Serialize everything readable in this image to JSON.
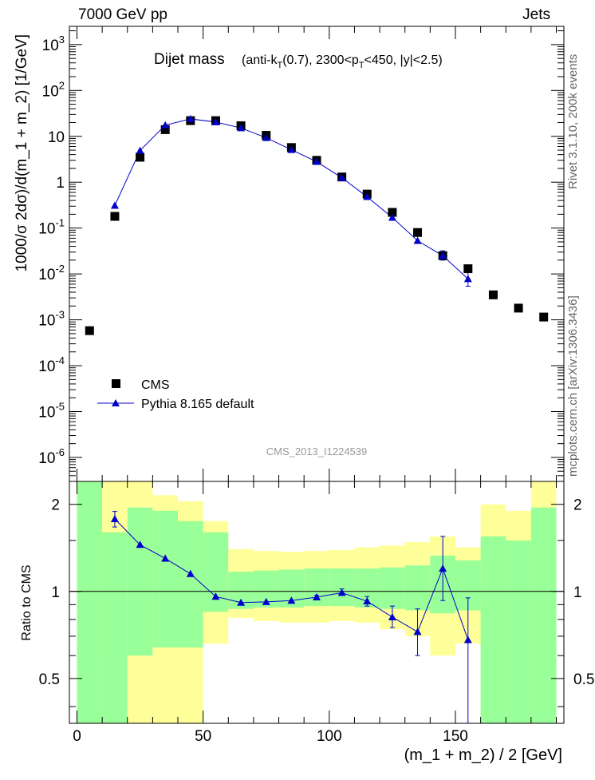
{
  "header": {
    "left": "7000 GeV pp",
    "right": "Jets"
  },
  "side": {
    "rivet": "Rivet 3.1.10,  200k events",
    "mcplots": "mcplots.cern.ch [arXiv:1306.3436]"
  },
  "chart_data": [
    {
      "type": "scatter",
      "log_y": true,
      "title": "Dijet mass",
      "subtitle": "(anti-kT(0.7), 2300<pT<450, |y|<2.5)",
      "watermark": "CMS_2013_I1224539",
      "ylabel": "1000/σ 2dσ)/d(m_1 + m_2) [1/GeV]",
      "xlim": [
        -3,
        193
      ],
      "ylim": [
        3e-07,
        2500
      ],
      "y_tick_labels": [
        "10^-6",
        "10^-5",
        "10^-4",
        "10^-3",
        "10^-2",
        "10^-1",
        "1",
        "10",
        "10^2",
        "10^3"
      ],
      "legend": [
        "CMS",
        "Pythia 8.165 default"
      ],
      "series": [
        {
          "name": "CMS",
          "color": "#000000",
          "marker": "square",
          "x": [
            5,
            15,
            25,
            35,
            45,
            55,
            65,
            75,
            85,
            95,
            105,
            115,
            125,
            135,
            145,
            155,
            165,
            175,
            185
          ],
          "values": [
            0.00058,
            0.18,
            3.5,
            14,
            22,
            22,
            17,
            10.5,
            5.7,
            3.0,
            1.3,
            0.55,
            0.22,
            0.08,
            0.025,
            0.013,
            0.0035,
            0.0018,
            0.00115
          ]
        },
        {
          "name": "Pythia 8.165 default",
          "color": "#0000cc",
          "marker": "triangle",
          "x": [
            15,
            25,
            35,
            45,
            55,
            65,
            75,
            85,
            95,
            105,
            115,
            125,
            135,
            145,
            155
          ],
          "values": [
            0.31,
            4.9,
            17.5,
            24,
            20.5,
            15.2,
            9.3,
            5.1,
            2.8,
            1.25,
            0.48,
            0.17,
            0.053,
            0.025,
            0.0078
          ],
          "err_low": [
            0.31,
            4.9,
            17.5,
            24,
            20.5,
            15.2,
            9.3,
            5.1,
            2.8,
            1.25,
            0.48,
            0.17,
            0.053,
            0.02,
            0.0054
          ],
          "err_high": [
            0.31,
            4.9,
            17.5,
            24,
            20.5,
            15.2,
            9.3,
            5.1,
            2.8,
            1.25,
            0.48,
            0.17,
            0.053,
            0.032,
            0.0115
          ]
        }
      ]
    },
    {
      "type": "line",
      "log_y": true,
      "ylabel": "Ratio to CMS",
      "xlabel": "(m_1 + m_2) / 2 [GeV]",
      "xlim": [
        -3,
        193
      ],
      "ylim": [
        0.35,
        2.4
      ],
      "x_ticks": [
        0,
        50,
        100,
        150
      ],
      "y_ticks": [
        0.5,
        1,
        2
      ],
      "bands": {
        "bin_edges": [
          0,
          10,
          20,
          30,
          40,
          50,
          60,
          70,
          80,
          90,
          100,
          110,
          120,
          130,
          140,
          150,
          160,
          170,
          180,
          190
        ],
        "stat_low": [
          0.3,
          0.3,
          0.6,
          0.64,
          0.64,
          0.85,
          0.87,
          0.88,
          0.88,
          0.89,
          0.89,
          0.88,
          0.87,
          0.86,
          0.84,
          0.86,
          0.3,
          0.3,
          0.3
        ],
        "stat_high": [
          2.4,
          1.6,
          1.95,
          1.9,
          1.75,
          1.6,
          1.17,
          1.18,
          1.19,
          1.2,
          1.2,
          1.2,
          1.21,
          1.23,
          1.33,
          1.28,
          1.55,
          1.5,
          1.95
        ],
        "syst_low": [
          0.3,
          0.6,
          0.3,
          0.3,
          0.3,
          0.66,
          0.81,
          0.79,
          0.78,
          0.78,
          0.79,
          0.78,
          0.74,
          0.7,
          0.6,
          0.66,
          0.3,
          0.3,
          0.3
        ],
        "syst_high": [
          2.4,
          2.4,
          2.4,
          2.15,
          2.05,
          1.75,
          1.4,
          1.38,
          1.37,
          1.38,
          1.39,
          1.42,
          1.44,
          1.48,
          1.55,
          1.42,
          2.0,
          1.9,
          2.4
        ],
        "stat_color": "#99ff99",
        "syst_color": "#ffff99"
      },
      "series": [
        {
          "name": "Pythia 8.165 default / CMS",
          "color": "#0000cc",
          "x": [
            15,
            25,
            35,
            45,
            55,
            65,
            75,
            85,
            95,
            105,
            115,
            125,
            135,
            145,
            155
          ],
          "values": [
            1.78,
            1.45,
            1.3,
            1.15,
            0.96,
            0.915,
            0.92,
            0.93,
            0.955,
            0.99,
            0.925,
            0.815,
            0.725,
            1.2,
            0.68
          ],
          "err_low": [
            1.67,
            1.45,
            1.3,
            1.15,
            0.96,
            0.915,
            0.92,
            0.93,
            0.94,
            0.97,
            0.89,
            0.75,
            0.6,
            0.93,
            0.35
          ],
          "err_high": [
            1.89,
            1.45,
            1.3,
            1.15,
            0.96,
            0.915,
            0.92,
            0.93,
            0.97,
            1.02,
            0.96,
            0.89,
            0.87,
            1.55,
            0.95
          ]
        }
      ]
    }
  ]
}
